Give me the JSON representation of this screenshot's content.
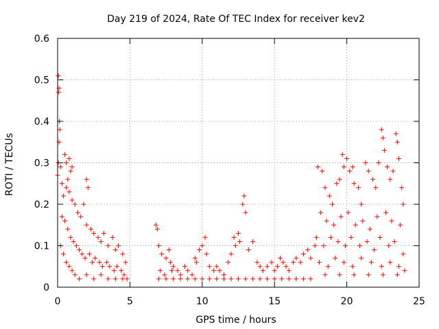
{
  "chart_data": {
    "type": "scatter",
    "title": "Day 219 of 2024, Rate Of TEC Index for receiver kev2",
    "xlabel": "GPS time / hours",
    "ylabel": "ROTI / TECUs",
    "xlim": [
      0,
      25
    ],
    "ylim": [
      0,
      0.6
    ],
    "x_ticks": [
      0,
      5,
      10,
      15,
      20,
      25
    ],
    "y_ticks": [
      0,
      0.1,
      0.2,
      0.3,
      0.4,
      0.5,
      0.6
    ],
    "x_tick_labels": [
      "0",
      "5",
      "10",
      "15",
      "20",
      "25"
    ],
    "y_tick_labels": [
      "0",
      "0.1",
      "0.2",
      "0.3",
      "0.4",
      "0.5",
      "0.6"
    ],
    "grid": true,
    "marker": "+",
    "color": "#ff0000",
    "series": [
      {
        "points": [
          [
            0.05,
            0.51
          ],
          [
            0.08,
            0.47
          ],
          [
            0.1,
            0.48
          ],
          [
            0.12,
            0.4
          ],
          [
            0.15,
            0.38
          ],
          [
            0.1,
            0.35
          ],
          [
            0.05,
            0.3
          ],
          [
            0.2,
            0.29
          ],
          [
            0.0,
            0.27
          ],
          [
            0.3,
            0.25
          ],
          [
            0.5,
            0.32
          ],
          [
            0.6,
            0.3
          ],
          [
            0.8,
            0.31
          ],
          [
            0.7,
            0.26
          ],
          [
            0.9,
            0.28
          ],
          [
            1.0,
            0.29
          ],
          [
            0.4,
            0.22
          ],
          [
            0.6,
            0.24
          ],
          [
            0.8,
            0.23
          ],
          [
            1.0,
            0.21
          ],
          [
            1.2,
            0.2
          ],
          [
            1.4,
            0.18
          ],
          [
            1.6,
            0.17
          ],
          [
            1.8,
            0.2
          ],
          [
            2.0,
            0.26
          ],
          [
            2.1,
            0.24
          ],
          [
            2.0,
            0.15
          ],
          [
            2.3,
            0.14
          ],
          [
            2.5,
            0.13
          ],
          [
            2.8,
            0.12
          ],
          [
            3.0,
            0.11
          ],
          [
            3.2,
            0.13
          ],
          [
            3.5,
            0.1
          ],
          [
            3.8,
            0.12
          ],
          [
            4.0,
            0.09
          ],
          [
            4.2,
            0.1
          ],
          [
            4.5,
            0.08
          ],
          [
            4.7,
            0.06
          ],
          [
            0.3,
            0.17
          ],
          [
            0.5,
            0.16
          ],
          [
            0.7,
            0.14
          ],
          [
            0.9,
            0.12
          ],
          [
            1.1,
            0.11
          ],
          [
            1.3,
            0.1
          ],
          [
            1.5,
            0.09
          ],
          [
            1.7,
            0.08
          ],
          [
            1.9,
            0.07
          ],
          [
            2.2,
            0.08
          ],
          [
            2.4,
            0.06
          ],
          [
            2.6,
            0.07
          ],
          [
            2.9,
            0.06
          ],
          [
            3.1,
            0.05
          ],
          [
            3.4,
            0.06
          ],
          [
            3.6,
            0.05
          ],
          [
            3.9,
            0.04
          ],
          [
            4.1,
            0.05
          ],
          [
            4.4,
            0.04
          ],
          [
            4.6,
            0.03
          ],
          [
            4.8,
            0.02
          ],
          [
            0.2,
            0.1
          ],
          [
            0.4,
            0.08
          ],
          [
            0.6,
            0.06
          ],
          [
            0.8,
            0.05
          ],
          [
            1.0,
            0.04
          ],
          [
            1.2,
            0.03
          ],
          [
            1.5,
            0.02
          ],
          [
            2.0,
            0.03
          ],
          [
            2.5,
            0.02
          ],
          [
            3.0,
            0.03
          ],
          [
            3.5,
            0.02
          ],
          [
            4.0,
            0.02
          ],
          [
            4.5,
            0.02
          ],
          [
            6.8,
            0.15
          ],
          [
            6.9,
            0.14
          ],
          [
            7.0,
            0.1
          ],
          [
            7.2,
            0.08
          ],
          [
            7.5,
            0.07
          ],
          [
            7.7,
            0.09
          ],
          [
            7.8,
            0.06
          ],
          [
            8.0,
            0.05
          ],
          [
            7.1,
            0.04
          ],
          [
            7.4,
            0.03
          ],
          [
            7.9,
            0.04
          ],
          [
            8.3,
            0.04
          ],
          [
            8.5,
            0.03
          ],
          [
            8.8,
            0.05
          ],
          [
            9.0,
            0.04
          ],
          [
            9.3,
            0.03
          ],
          [
            9.5,
            0.07
          ],
          [
            9.6,
            0.06
          ],
          [
            9.8,
            0.09
          ],
          [
            10.0,
            0.1
          ],
          [
            10.2,
            0.12
          ],
          [
            10.3,
            0.08
          ],
          [
            10.5,
            0.05
          ],
          [
            10.8,
            0.04
          ],
          [
            11.0,
            0.05
          ],
          [
            11.2,
            0.04
          ],
          [
            11.5,
            0.03
          ],
          [
            11.8,
            0.06
          ],
          [
            12.0,
            0.08
          ],
          [
            12.2,
            0.12
          ],
          [
            12.3,
            0.1
          ],
          [
            12.5,
            0.13
          ],
          [
            12.6,
            0.11
          ],
          [
            12.8,
            0.2
          ],
          [
            12.9,
            0.22
          ],
          [
            13.0,
            0.18
          ],
          [
            13.2,
            0.09
          ],
          [
            13.5,
            0.11
          ],
          [
            13.8,
            0.06
          ],
          [
            14.0,
            0.05
          ],
          [
            14.2,
            0.04
          ],
          [
            14.5,
            0.05
          ],
          [
            14.8,
            0.06
          ],
          [
            15.0,
            0.04
          ],
          [
            15.2,
            0.05
          ],
          [
            15.4,
            0.07
          ],
          [
            15.6,
            0.06
          ],
          [
            15.8,
            0.05
          ],
          [
            16.0,
            0.04
          ],
          [
            16.3,
            0.06
          ],
          [
            16.5,
            0.07
          ],
          [
            16.8,
            0.06
          ],
          [
            17.0,
            0.08
          ],
          [
            17.3,
            0.09
          ],
          [
            17.5,
            0.07
          ],
          [
            17.8,
            0.1
          ],
          [
            17.9,
            0.12
          ],
          [
            7.0,
            0.02
          ],
          [
            7.5,
            0.02
          ],
          [
            8.0,
            0.02
          ],
          [
            8.5,
            0.02
          ],
          [
            9.0,
            0.02
          ],
          [
            9.5,
            0.02
          ],
          [
            10.0,
            0.02
          ],
          [
            10.5,
            0.02
          ],
          [
            11.0,
            0.02
          ],
          [
            11.5,
            0.02
          ],
          [
            12.0,
            0.02
          ],
          [
            12.5,
            0.02
          ],
          [
            13.0,
            0.02
          ],
          [
            13.5,
            0.02
          ],
          [
            14.0,
            0.02
          ],
          [
            14.5,
            0.02
          ],
          [
            15.0,
            0.02
          ],
          [
            15.5,
            0.02
          ],
          [
            16.0,
            0.02
          ],
          [
            16.5,
            0.02
          ],
          [
            17.0,
            0.02
          ],
          [
            17.5,
            0.02
          ],
          [
            18.0,
            0.29
          ],
          [
            18.3,
            0.28
          ],
          [
            18.5,
            0.24
          ],
          [
            18.8,
            0.22
          ],
          [
            19.0,
            0.2
          ],
          [
            19.3,
            0.25
          ],
          [
            19.5,
            0.26
          ],
          [
            19.7,
            0.32
          ],
          [
            19.8,
            0.29
          ],
          [
            20.0,
            0.31
          ],
          [
            20.2,
            0.28
          ],
          [
            20.4,
            0.29
          ],
          [
            20.5,
            0.25
          ],
          [
            20.8,
            0.24
          ],
          [
            21.0,
            0.2
          ],
          [
            21.3,
            0.3
          ],
          [
            21.5,
            0.28
          ],
          [
            21.8,
            0.26
          ],
          [
            22.0,
            0.24
          ],
          [
            22.2,
            0.3
          ],
          [
            22.4,
            0.38
          ],
          [
            22.5,
            0.36
          ],
          [
            22.6,
            0.33
          ],
          [
            22.8,
            0.29
          ],
          [
            23.0,
            0.26
          ],
          [
            23.2,
            0.28
          ],
          [
            23.4,
            0.37
          ],
          [
            23.5,
            0.35
          ],
          [
            23.6,
            0.31
          ],
          [
            23.8,
            0.24
          ],
          [
            23.9,
            0.2
          ],
          [
            18.2,
            0.18
          ],
          [
            18.6,
            0.16
          ],
          [
            19.1,
            0.15
          ],
          [
            19.6,
            0.17
          ],
          [
            20.1,
            0.18
          ],
          [
            20.6,
            0.15
          ],
          [
            21.1,
            0.16
          ],
          [
            21.6,
            0.14
          ],
          [
            22.1,
            0.17
          ],
          [
            22.7,
            0.18
          ],
          [
            23.1,
            0.16
          ],
          [
            23.7,
            0.15
          ],
          [
            18.4,
            0.1
          ],
          [
            18.9,
            0.12
          ],
          [
            19.4,
            0.11
          ],
          [
            19.9,
            0.1
          ],
          [
            20.3,
            0.12
          ],
          [
            20.9,
            0.1
          ],
          [
            21.4,
            0.11
          ],
          [
            21.9,
            0.09
          ],
          [
            22.3,
            0.12
          ],
          [
            22.9,
            0.1
          ],
          [
            23.3,
            0.11
          ],
          [
            23.9,
            0.08
          ],
          [
            18.1,
            0.06
          ],
          [
            18.7,
            0.05
          ],
          [
            19.2,
            0.07
          ],
          [
            19.8,
            0.06
          ],
          [
            20.4,
            0.05
          ],
          [
            21.0,
            0.07
          ],
          [
            21.7,
            0.06
          ],
          [
            22.4,
            0.05
          ],
          [
            23.0,
            0.06
          ],
          [
            23.6,
            0.05
          ],
          [
            24.0,
            0.04
          ],
          [
            18.5,
            0.03
          ],
          [
            19.5,
            0.03
          ],
          [
            20.5,
            0.03
          ],
          [
            21.5,
            0.03
          ],
          [
            22.5,
            0.03
          ],
          [
            23.5,
            0.03
          ]
        ]
      }
    ]
  }
}
